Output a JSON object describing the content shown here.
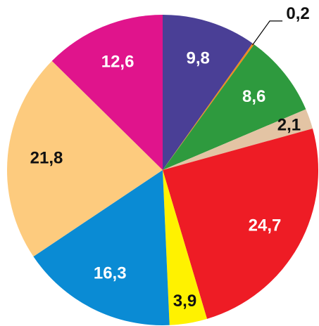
{
  "chart_data": {
    "type": "pie",
    "values": [
      9.8,
      0.2,
      8.6,
      2.1,
      24.7,
      3.9,
      16.3,
      21.8,
      12.6
    ],
    "value_labels": [
      "9,8",
      "0,2",
      "8,6",
      "2,1",
      "24,7",
      "3,9",
      "16,3",
      "21,8",
      "12,6"
    ],
    "colors": [
      "#4a3f96",
      "#f08a1e",
      "#2e9a3e",
      "#e3c4a4",
      "#ee1c25",
      "#fff200",
      "#0a8bd4",
      "#fdcb7e",
      "#e0148c"
    ]
  }
}
